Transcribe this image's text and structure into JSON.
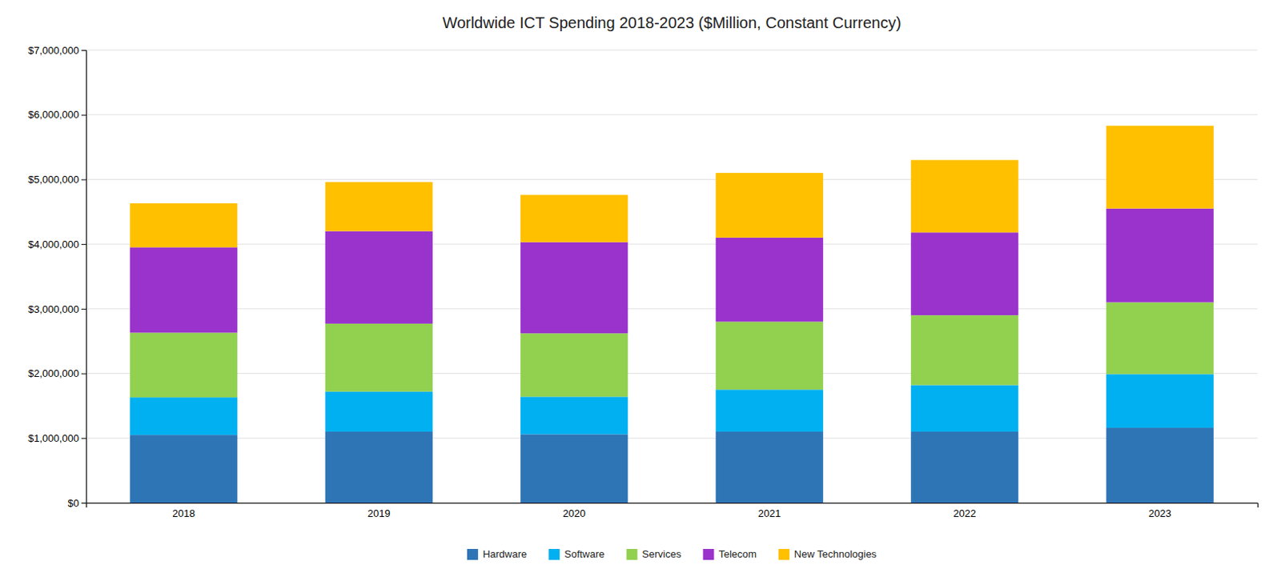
{
  "chart_data": {
    "type": "bar",
    "stacked": true,
    "title": "Worldwide ICT Spending 2018-2023 ($Million, Constant Currency)",
    "categories": [
      "2018",
      "2019",
      "2020",
      "2021",
      "2022",
      "2023"
    ],
    "series": [
      {
        "name": "Hardware",
        "color": "#2e75b6",
        "values": [
          1050000,
          1100000,
          1060000,
          1100000,
          1100000,
          1160000
        ]
      },
      {
        "name": "Software",
        "color": "#00b0f0",
        "values": [
          580000,
          620000,
          580000,
          650000,
          720000,
          830000
        ]
      },
      {
        "name": "Services",
        "color": "#92d050",
        "values": [
          1000000,
          1050000,
          980000,
          1050000,
          1080000,
          1110000
        ]
      },
      {
        "name": "Telecom",
        "color": "#9933cc",
        "values": [
          1320000,
          1430000,
          1410000,
          1300000,
          1280000,
          1450000
        ]
      },
      {
        "name": "New Technologies",
        "color": "#ffc000",
        "values": [
          680000,
          760000,
          730000,
          1000000,
          1120000,
          1280000
        ]
      }
    ],
    "ylim": [
      0,
      7000000
    ],
    "yticks": [
      {
        "value": 0,
        "label": "$0"
      },
      {
        "value": 1000000,
        "label": "$1,000,000"
      },
      {
        "value": 2000000,
        "label": "$2,000,000"
      },
      {
        "value": 3000000,
        "label": "$3,000,000"
      },
      {
        "value": 4000000,
        "label": "$4,000,000"
      },
      {
        "value": 5000000,
        "label": "$5,000,000"
      },
      {
        "value": 6000000,
        "label": "$6,000,000"
      },
      {
        "value": 7000000,
        "label": "$7,000,000"
      }
    ],
    "grid": true,
    "legend": "bottom"
  }
}
